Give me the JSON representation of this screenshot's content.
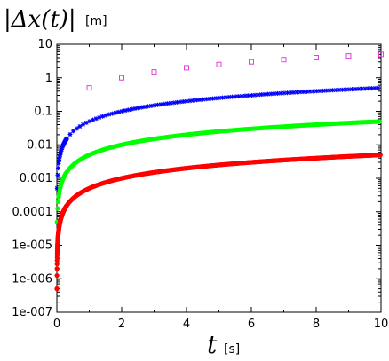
{
  "chart_data": {
    "type": "scatter",
    "title": "",
    "xlabel": "t",
    "xlabel_unit": "[s]",
    "ylabel": "|Δx(t)|",
    "ylabel_unit": "[m]",
    "xlim": [
      0,
      10
    ],
    "ylim": [
      1e-07,
      10
    ],
    "yscale": "log",
    "grid": false,
    "x_ticks": [
      "0",
      "2",
      "4",
      "6",
      "8",
      "10"
    ],
    "y_ticks": [
      "10",
      "1",
      "0.1",
      "0.01",
      "0.001",
      "0.0001",
      "1e-005",
      "1e-006",
      "1e-007"
    ],
    "series": [
      {
        "marker": "square-open",
        "color": "#e040e0",
        "x": [
          1,
          2,
          3,
          4,
          5,
          6,
          7,
          8,
          9,
          10
        ],
        "y": [
          0.5,
          1.0,
          1.5,
          2.0,
          2.5,
          3.0,
          3.5,
          4.0,
          4.5,
          5.0
        ]
      },
      {
        "marker": "asterisk",
        "color": "#0000ff",
        "x_range": [
          0.01,
          10
        ],
        "x_step": 0.1,
        "y_rule": "y = 0.05 * x",
        "y_endpoints": [
          0.005,
          0.5
        ]
      },
      {
        "marker": "circle-dense",
        "color": "#00ff00",
        "x_range": [
          0.01,
          10
        ],
        "x_step": 0.05,
        "y_rule": "y = 0.005 * x",
        "y_endpoints": [
          5e-05,
          0.05
        ]
      },
      {
        "marker": "plus-dense",
        "color": "#ff0000",
        "x_range": [
          0.001,
          10
        ],
        "x_step": 0.02,
        "y_rule": "y = 0.0005 * x",
        "y_endpoints": [
          5e-07,
          0.005
        ]
      }
    ]
  }
}
